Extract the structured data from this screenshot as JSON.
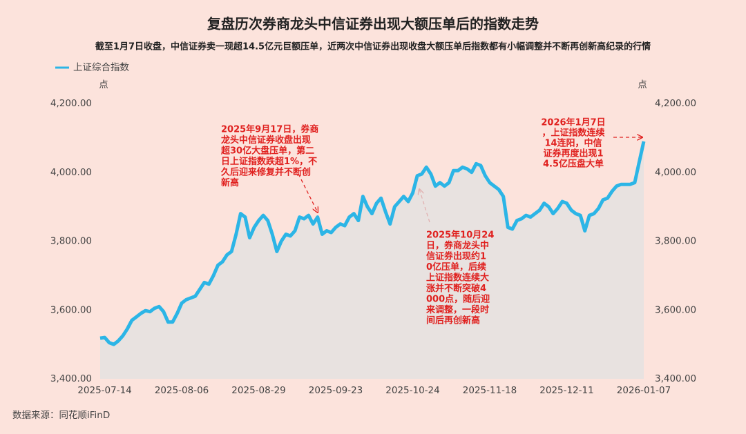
{
  "chart_data": {
    "type": "line",
    "title": "复盘历次券商龙头中信证券出现大额压单后的指数走势",
    "subtitle": "截至1月7日收盘，中信证券卖一现超14.5亿元巨额压单，近两次中信证券出现收盘大额压单后指数都有小幅调整并不断再创新高纪录的行情",
    "y_unit": "点",
    "y2_unit": "点",
    "source": "数据来源：同花顺iFinD",
    "categories": [
      null,
      "2025-07-14",
      null,
      null,
      null,
      null,
      null,
      null,
      null,
      null,
      null,
      null,
      null,
      null,
      null,
      null,
      null,
      null,
      "2025-08-06",
      null,
      null,
      null,
      null,
      null,
      null,
      null,
      null,
      null,
      null,
      null,
      null,
      null,
      null,
      null,
      null,
      "2025-08-29",
      null,
      null,
      null,
      null,
      null,
      null,
      null,
      null,
      null,
      null,
      null,
      null,
      null,
      null,
      null,
      null,
      "2025-09-23",
      null,
      null,
      null,
      null,
      null,
      null,
      null,
      null,
      null,
      null,
      null,
      null,
      null,
      null,
      null,
      null,
      "2025-10-24",
      null,
      null,
      null,
      null,
      null,
      null,
      null,
      null,
      null,
      null,
      null,
      null,
      null,
      null,
      null,
      null,
      "2025-11-18",
      null,
      null,
      null,
      null,
      null,
      null,
      null,
      null,
      null,
      null,
      null,
      null,
      null,
      null,
      null,
      null,
      "2025-12-11",
      null,
      null,
      null,
      null,
      null,
      null,
      null,
      null,
      null,
      null,
      null,
      null,
      null,
      null,
      null,
      null,
      "2026-01-07"
    ],
    "series": [
      {
        "name": "上证综合指数",
        "color": "#2cb5e6",
        "values": [
          3518,
          3520,
          3505,
          3500,
          3510,
          3525,
          3545,
          3570,
          3580,
          3590,
          3598,
          3595,
          3605,
          3610,
          3595,
          3565,
          3565,
          3590,
          3620,
          3630,
          3635,
          3640,
          3660,
          3680,
          3675,
          3700,
          3730,
          3740,
          3760,
          3770,
          3820,
          3880,
          3870,
          3810,
          3840,
          3860,
          3875,
          3860,
          3820,
          3770,
          3800,
          3820,
          3815,
          3830,
          3870,
          3865,
          3875,
          3850,
          3870,
          3820,
          3830,
          3825,
          3840,
          3850,
          3845,
          3870,
          3880,
          3860,
          3930,
          3900,
          3880,
          3910,
          3925,
          3885,
          3850,
          3900,
          3915,
          3930,
          3915,
          3940,
          3990,
          3995,
          4015,
          3995,
          3960,
          3970,
          3960,
          3970,
          4005,
          4005,
          4015,
          4010,
          4000,
          4025,
          4020,
          3990,
          3970,
          3960,
          3950,
          3930,
          3840,
          3835,
          3860,
          3865,
          3875,
          3870,
          3880,
          3890,
          3910,
          3900,
          3880,
          3895,
          3915,
          3910,
          3890,
          3880,
          3875,
          3830,
          3875,
          3880,
          3895,
          3920,
          3925,
          3945,
          3960,
          3965,
          3965,
          3965,
          3970,
          4030,
          4090
        ]
      }
    ],
    "ylim": [
      3400,
      4200
    ],
    "yticks": [
      {
        "value": 3400,
        "label": "3,400.00"
      },
      {
        "value": 3600,
        "label": "3,600.00"
      },
      {
        "value": 3800,
        "label": "3,800.00"
      },
      {
        "value": 4000,
        "label": "4,000.00"
      },
      {
        "value": 4200,
        "label": "4,200.00"
      }
    ],
    "y2lim": [
      3400,
      4200
    ],
    "y2ticks": [
      {
        "value": 3400,
        "label": "3,400.00"
      },
      {
        "value": 3600,
        "label": "3,600.00"
      },
      {
        "value": 3800,
        "label": "3,800.00"
      },
      {
        "value": 4000,
        "label": "4,000.00"
      },
      {
        "value": 4200,
        "label": "4,200.00"
      }
    ],
    "annotations": [
      {
        "lines": [
          "2025年9月17日，券商",
          "龙头中信证券收盘出现",
          "超30亿大盘压单，第二",
          "日上证指数跌超1%，不",
          "久后迎来修复并不断创",
          "新高"
        ]
      },
      {
        "lines": [
          "2025年10月24",
          "日，券商龙头中",
          "信证券出现约1",
          "0亿压单，后续",
          "上证指数连续大",
          "涨并不断突破4",
          "000点，随后迎",
          "来调整，一段时",
          "间后再创新高"
        ]
      },
      {
        "lines": [
          "2026年1月7日",
          "，上证指数连续",
          "14连阳，中信",
          "证券再度出现1",
          "4.5亿压盘大单"
        ]
      }
    ]
  }
}
